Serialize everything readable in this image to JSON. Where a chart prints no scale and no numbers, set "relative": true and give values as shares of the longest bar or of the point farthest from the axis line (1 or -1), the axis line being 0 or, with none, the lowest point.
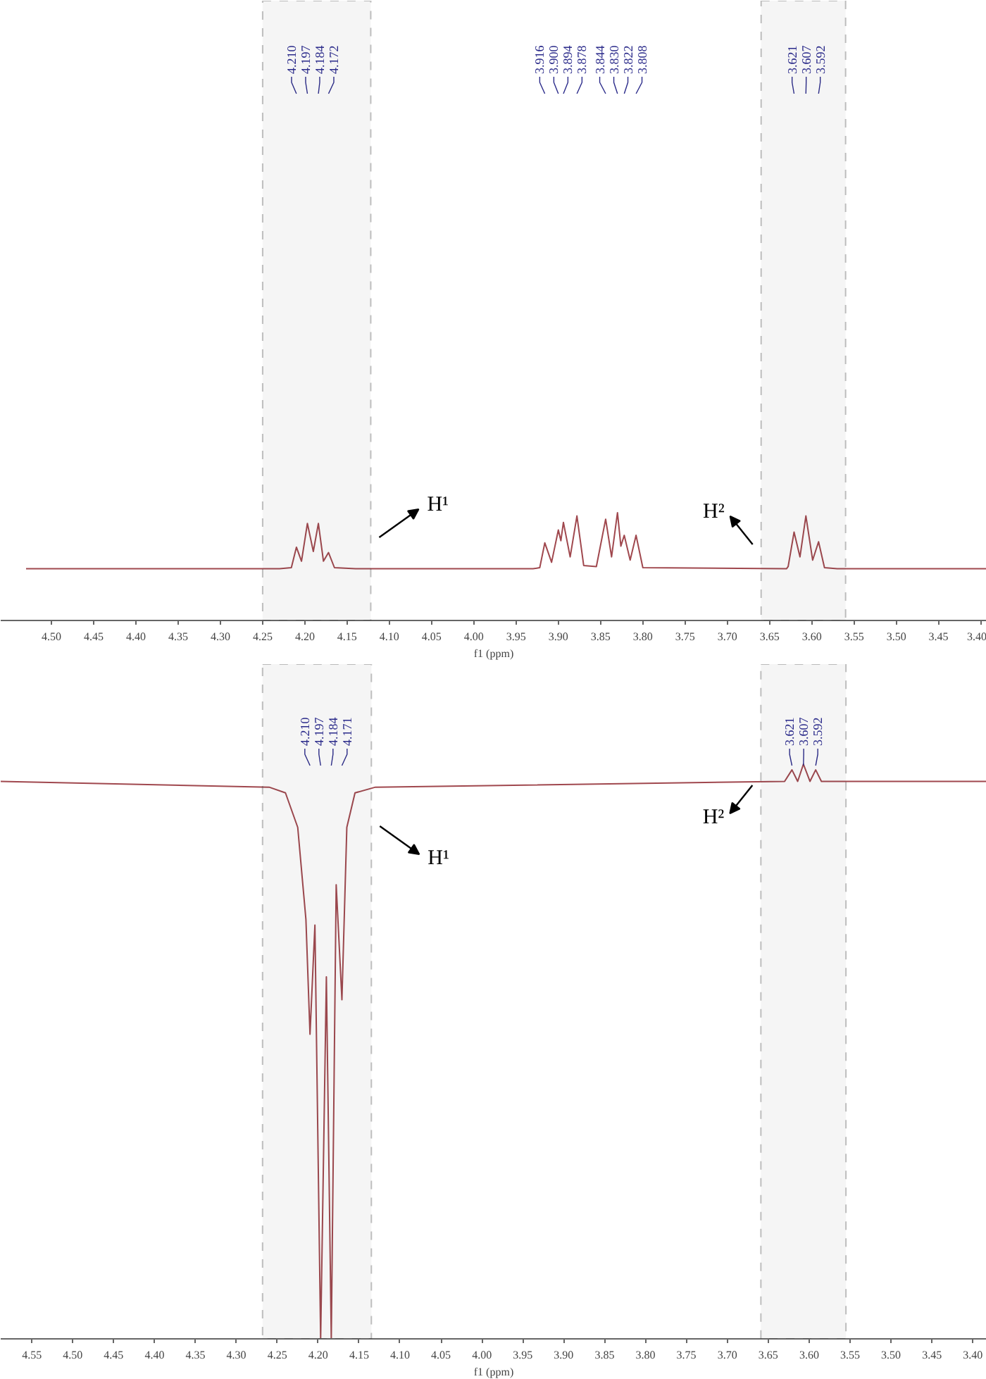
{
  "chart_data": [
    {
      "type": "line",
      "relative": true,
      "xlabel": "f1 (ppm)",
      "xlim": [
        4.56,
        3.393
      ],
      "xticks": [
        {
          "value": 4.5,
          "label": "4.50"
        },
        {
          "value": 4.45,
          "label": "4.45"
        },
        {
          "value": 4.4,
          "label": "4.40"
        },
        {
          "value": 4.35,
          "label": "4.35"
        },
        {
          "value": 4.3,
          "label": "4.30"
        },
        {
          "value": 4.25,
          "label": "4.25"
        },
        {
          "value": 4.2,
          "label": "4.20"
        },
        {
          "value": 4.15,
          "label": "4.15"
        },
        {
          "value": 4.1,
          "label": "4.10"
        },
        {
          "value": 4.05,
          "label": "4.05"
        },
        {
          "value": 4.0,
          "label": "4.00"
        },
        {
          "value": 3.95,
          "label": "3.95"
        },
        {
          "value": 3.9,
          "label": "3.90"
        },
        {
          "value": 3.85,
          "label": "3.85"
        },
        {
          "value": 3.8,
          "label": "3.80"
        },
        {
          "value": 3.75,
          "label": "3.75"
        },
        {
          "value": 3.7,
          "label": "3.70"
        },
        {
          "value": 3.65,
          "label": "3.65"
        },
        {
          "value": 3.6,
          "label": "3.60"
        },
        {
          "value": 3.55,
          "label": "3.55"
        },
        {
          "value": 3.5,
          "label": "3.50"
        },
        {
          "value": 3.45,
          "label": "3.45"
        },
        {
          "value": 3.4,
          "label": "3.40"
        }
      ],
      "x": [
        4.53,
        4.23,
        4.216,
        4.21,
        4.204,
        4.197,
        4.19,
        4.184,
        4.178,
        4.172,
        4.165,
        4.14,
        3.93,
        3.922,
        3.916,
        3.908,
        3.9,
        3.897,
        3.894,
        3.886,
        3.878,
        3.87,
        3.855,
        3.844,
        3.837,
        3.83,
        3.826,
        3.822,
        3.815,
        3.808,
        3.8,
        3.63,
        3.628,
        3.621,
        3.614,
        3.607,
        3.599,
        3.592,
        3.585,
        3.57,
        3.393
      ],
      "series": [
        {
          "color": "#a0484e",
          "values": [
            0.48,
            0.48,
            0.49,
            0.68,
            0.55,
            0.9,
            0.64,
            0.9,
            0.55,
            0.63,
            0.49,
            0.48,
            0.48,
            0.49,
            0.72,
            0.54,
            0.84,
            0.74,
            0.91,
            0.59,
            0.97,
            0.51,
            0.5,
            0.94,
            0.59,
            1.0,
            0.69,
            0.79,
            0.56,
            0.79,
            0.49,
            0.48,
            0.5,
            0.82,
            0.59,
            0.97,
            0.56,
            0.73,
            0.49,
            0.48,
            0.48
          ]
        }
      ],
      "bands": [
        {
          "axis": "x",
          "from": 4.25,
          "to": 4.122,
          "color": "#333333"
        },
        {
          "axis": "x",
          "from": 3.66,
          "to": 3.56,
          "color": "#333333"
        }
      ],
      "annotations": [
        {
          "text": "4.210",
          "x": 4.21
        },
        {
          "text": "4.197",
          "x": 4.197
        },
        {
          "text": "4.184",
          "x": 4.184
        },
        {
          "text": "4.172",
          "x": 4.172
        },
        {
          "text": "3.916",
          "x": 3.916
        },
        {
          "text": "3.900",
          "x": 3.9
        },
        {
          "text": "3.894",
          "x": 3.894
        },
        {
          "text": "3.878",
          "x": 3.878
        },
        {
          "text": "3.844",
          "x": 3.844
        },
        {
          "text": "3.830",
          "x": 3.83
        },
        {
          "text": "3.822",
          "x": 3.822
        },
        {
          "text": "3.808",
          "x": 3.808
        },
        {
          "text": "3.621",
          "x": 3.621
        },
        {
          "text": "3.607",
          "x": 3.607
        },
        {
          "text": "3.592",
          "x": 3.592
        },
        "H¹",
        "H²"
      ]
    },
    {
      "type": "line",
      "relative": true,
      "xlabel": "f1 (ppm)",
      "xlim": [
        4.588,
        3.383
      ],
      "xticks": [
        {
          "value": 4.55,
          "label": "4.55"
        },
        {
          "value": 4.5,
          "label": "4.50"
        },
        {
          "value": 4.45,
          "label": "4.45"
        },
        {
          "value": 4.4,
          "label": "4.40"
        },
        {
          "value": 4.35,
          "label": "4.35"
        },
        {
          "value": 4.3,
          "label": "4.30"
        },
        {
          "value": 4.25,
          "label": "4.25"
        },
        {
          "value": 4.2,
          "label": "4.20"
        },
        {
          "value": 4.15,
          "label": "4.15"
        },
        {
          "value": 4.1,
          "label": "4.10"
        },
        {
          "value": 4.05,
          "label": "4.05"
        },
        {
          "value": 4.0,
          "label": "4.00"
        },
        {
          "value": 3.95,
          "label": "3.95"
        },
        {
          "value": 3.9,
          "label": "3.90"
        },
        {
          "value": 3.85,
          "label": "3.85"
        },
        {
          "value": 3.8,
          "label": "3.80"
        },
        {
          "value": 3.75,
          "label": "3.75"
        },
        {
          "value": 3.7,
          "label": "3.70"
        },
        {
          "value": 3.65,
          "label": "3.65"
        },
        {
          "value": 3.6,
          "label": "3.60"
        },
        {
          "value": 3.55,
          "label": "3.55"
        },
        {
          "value": 3.5,
          "label": "3.50"
        },
        {
          "value": 3.45,
          "label": "3.45"
        },
        {
          "value": 3.4,
          "label": "3.40"
        }
      ],
      "x": [
        4.588,
        4.26,
        4.24,
        4.225,
        4.215,
        4.21,
        4.204,
        4.197,
        4.19,
        4.184,
        4.178,
        4.171,
        4.165,
        4.155,
        4.13,
        3.63,
        3.621,
        3.614,
        3.607,
        3.599,
        3.592,
        3.585,
        3.383
      ],
      "series": [
        {
          "color": "#a0484e",
          "values": [
            0.97,
            0.96,
            0.95,
            0.89,
            0.73,
            0.53,
            0.72,
            0,
            0.63,
            0,
            0.79,
            0.59,
            0.89,
            0.95,
            0.96,
            0.97,
            0.99,
            0.97,
            1.0,
            0.97,
            0.99,
            0.97,
            0.97
          ]
        }
      ],
      "bands": [
        {
          "axis": "x",
          "from": 4.268,
          "to": 4.135,
          "color": "#333333"
        },
        {
          "axis": "x",
          "from": 3.659,
          "to": 3.555,
          "color": "#333333"
        }
      ],
      "annotations": [
        {
          "text": "4.210",
          "x": 4.21
        },
        {
          "text": "4.197",
          "x": 4.197
        },
        {
          "text": "4.184",
          "x": 4.184
        },
        {
          "text": "4.171",
          "x": 4.171
        },
        {
          "text": "3.621",
          "x": 3.621
        },
        {
          "text": "3.607",
          "x": 3.607
        },
        {
          "text": "3.592",
          "x": 3.592
        },
        "H¹",
        "H²"
      ]
    }
  ]
}
